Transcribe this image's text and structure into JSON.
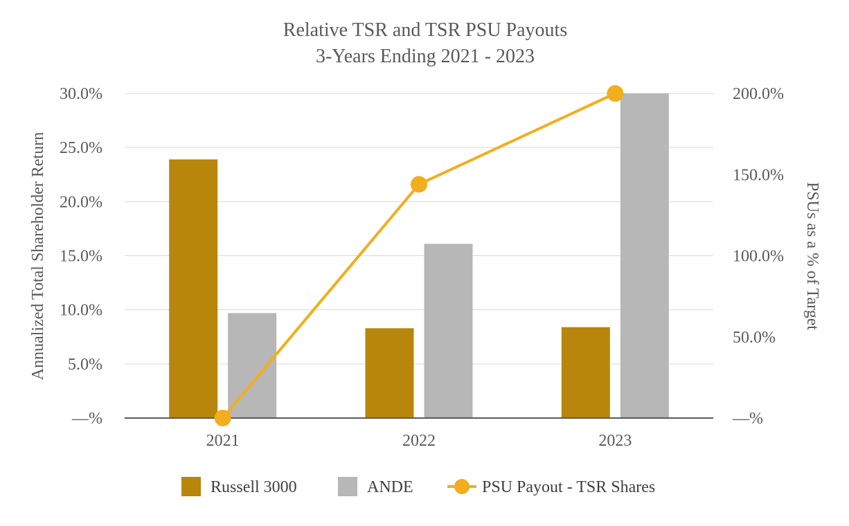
{
  "chart_data": {
    "type": "bar",
    "title": [
      "Relative TSR and TSR PSU Payouts",
      "3-Years Ending 2021 - 2023"
    ],
    "categories": [
      "2021",
      "2022",
      "2023"
    ],
    "ylabel": "Annualized Total Shareholder Return",
    "y2label": "PSUs as a % of Target",
    "ylim": [
      0,
      30
    ],
    "y2lim": [
      0,
      200
    ],
    "yticks": [
      0,
      5,
      10,
      15,
      20,
      25,
      30
    ],
    "ytick_labels": [
      "—%",
      "5.0%",
      "10.0%",
      "15.0%",
      "20.0%",
      "25.0%",
      "30.0%"
    ],
    "y2ticks": [
      0,
      50,
      100,
      150,
      200
    ],
    "y2tick_labels": [
      "—%",
      "50.0%",
      "100.0%",
      "150.0%",
      "200.0%"
    ],
    "grid": true,
    "legend_position": "bottom",
    "series": [
      {
        "name": "Russell 3000",
        "type": "bar",
        "axis": "left",
        "color": "#B8860B",
        "values": [
          23.9,
          8.3,
          8.4
        ]
      },
      {
        "name": "ANDE",
        "type": "bar",
        "axis": "left",
        "color": "#B7B7B7",
        "values": [
          9.7,
          16.1,
          30.0
        ]
      },
      {
        "name": "PSU Payout - TSR Shares",
        "type": "line",
        "axis": "right",
        "color": "#F2AE1C",
        "values": [
          0,
          144,
          200
        ]
      }
    ]
  }
}
